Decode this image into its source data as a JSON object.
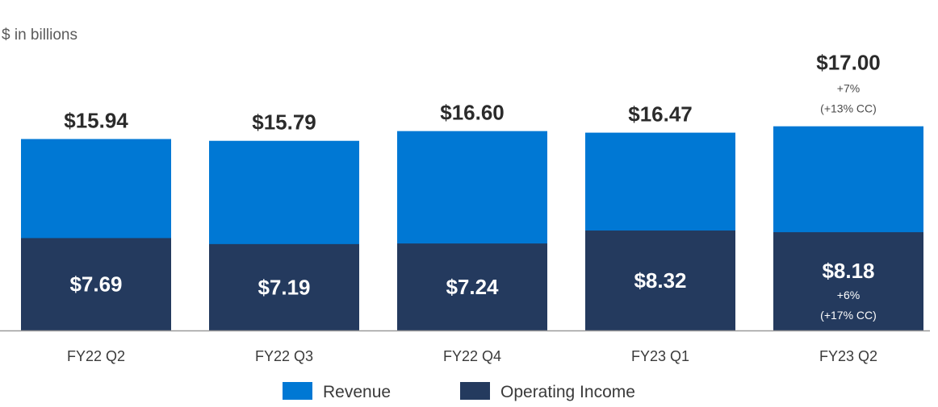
{
  "chart_data": {
    "type": "bar",
    "stacked": true,
    "unit_label": "$ in billions",
    "categories": [
      "FY22 Q2",
      "FY22 Q3",
      "FY22 Q4",
      "FY23 Q1",
      "FY23 Q2"
    ],
    "series": [
      {
        "name": "Revenue",
        "color": "#0078d4",
        "values": [
          15.94,
          15.79,
          16.6,
          16.47,
          17.0
        ],
        "labels": [
          "$15.94",
          "$15.79",
          "$16.60",
          "$16.47",
          "$17.00"
        ]
      },
      {
        "name": "Operating Income",
        "color": "#243a5e",
        "values": [
          7.69,
          7.19,
          7.24,
          8.32,
          8.18
        ],
        "labels": [
          "$7.69",
          "$7.19",
          "$7.24",
          "$8.32",
          "$8.18"
        ]
      }
    ],
    "annotations": {
      "revenue_growth": {
        "category": "FY23 Q2",
        "lines": [
          "+7%",
          "(+13% CC)"
        ]
      },
      "operating_income_growth": {
        "category": "FY23 Q2",
        "lines": [
          "+6%",
          "(+17% CC)"
        ]
      }
    },
    "legend": [
      "Revenue",
      "Operating Income"
    ]
  }
}
